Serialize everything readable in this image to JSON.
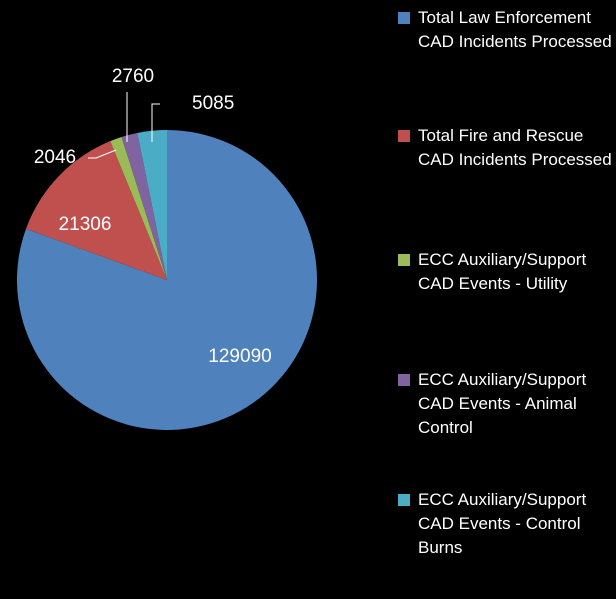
{
  "chart_data": {
    "type": "pie",
    "categories": [
      "Total Law Enforcement CAD Incidents Processed",
      "Total Fire and Rescue CAD Incidents Processed",
      "ECC Auxiliary/Support CAD Events - Utility",
      "ECC Auxiliary/Support CAD Events - Animal Control",
      "ECC Auxiliary/Support CAD Events - Control Burns"
    ],
    "values": [
      129090,
      21306,
      2046,
      2760,
      5085
    ],
    "colors": [
      "#4f81bd",
      "#c0504d",
      "#9bbb59",
      "#8064a2",
      "#4bacc6"
    ],
    "legend": "right"
  }
}
